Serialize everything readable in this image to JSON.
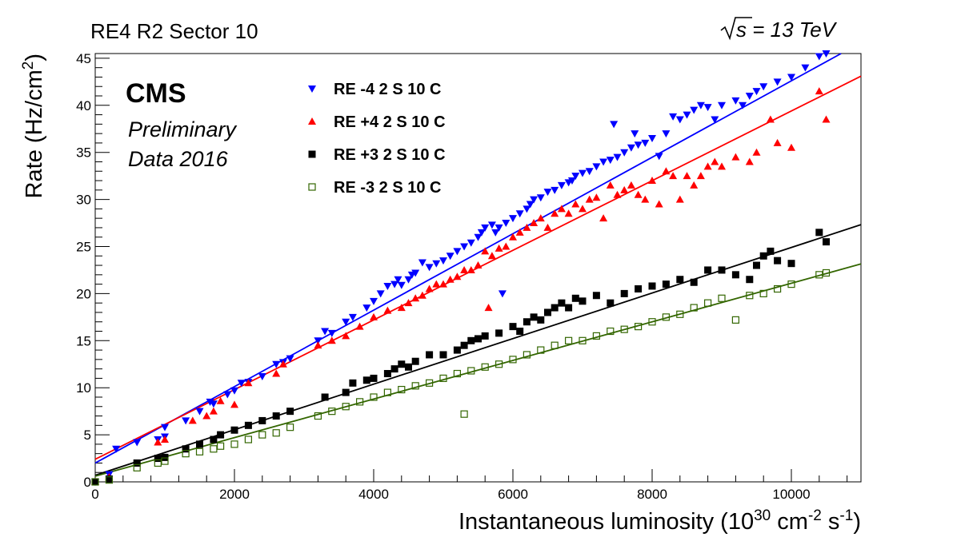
{
  "header": {
    "left_title": "RE4 R2 Sector 10",
    "energy_symbol": "s",
    "energy_value": " = 13 TeV"
  },
  "cms_label": {
    "main": "CMS",
    "line1": "Preliminary",
    "line2": "Data 2016"
  },
  "axes": {
    "x_title_base": "Instantaneous luminosity (10",
    "x_title_sup1": "30",
    "x_title_mid1": " cm",
    "x_title_sup2": "-2",
    "x_title_mid2": " s",
    "x_title_sup3": "-1",
    "x_title_end": ")",
    "y_title_base": "Rate (Hz/cm",
    "y_title_sup": "2",
    "y_title_end": ")"
  },
  "chart_data": {
    "type": "scatter",
    "xlim": [
      0,
      11000
    ],
    "ylim": [
      0,
      45.5
    ],
    "x_ticks": [
      0,
      2000,
      4000,
      6000,
      8000,
      10000
    ],
    "x_tick_labels": [
      "0",
      "2000",
      "4000",
      "6000",
      "8000",
      "10000"
    ],
    "y_ticks": [
      0,
      5,
      10,
      15,
      20,
      25,
      30,
      35,
      40,
      45
    ],
    "y_tick_labels": [
      "0",
      "5",
      "10",
      "15",
      "20",
      "25",
      "30",
      "35",
      "40",
      "45"
    ],
    "grid": false,
    "legend_position": "top-left",
    "series": [
      {
        "name": "RE -4 2 S 10 C",
        "marker": "triangle-down",
        "color": "#0000ff",
        "fit": {
          "slope": 0.00406,
          "intercept": 2.0
        },
        "points": [
          [
            0,
            0
          ],
          [
            200,
            0.8
          ],
          [
            300,
            3.5
          ],
          [
            600,
            4.2
          ],
          [
            900,
            4.5
          ],
          [
            1000,
            4.8
          ],
          [
            1000,
            5.8
          ],
          [
            1300,
            6.5
          ],
          [
            1500,
            7.5
          ],
          [
            1650,
            8.5
          ],
          [
            1700,
            8.3
          ],
          [
            1900,
            9.3
          ],
          [
            2000,
            9.7
          ],
          [
            2100,
            10.5
          ],
          [
            2200,
            10.6
          ],
          [
            2400,
            11.2
          ],
          [
            2600,
            12.5
          ],
          [
            2700,
            12.7
          ],
          [
            2800,
            13.1
          ],
          [
            3200,
            15.0
          ],
          [
            3300,
            16.0
          ],
          [
            3400,
            15.8
          ],
          [
            3600,
            17.0
          ],
          [
            3700,
            17.5
          ],
          [
            3900,
            18.5
          ],
          [
            4000,
            19.2
          ],
          [
            4100,
            20.0
          ],
          [
            4200,
            20.8
          ],
          [
            4300,
            21.0
          ],
          [
            4350,
            21.5
          ],
          [
            4400,
            20.9
          ],
          [
            4500,
            21.5
          ],
          [
            4550,
            22.0
          ],
          [
            4600,
            22.2
          ],
          [
            4700,
            23.3
          ],
          [
            4800,
            22.8
          ],
          [
            4900,
            23.2
          ],
          [
            5000,
            23.5
          ],
          [
            5100,
            24.0
          ],
          [
            5200,
            24.5
          ],
          [
            5300,
            25.0
          ],
          [
            5400,
            25.4
          ],
          [
            5500,
            26.0
          ],
          [
            5550,
            26.5
          ],
          [
            5600,
            27.0
          ],
          [
            5700,
            27.3
          ],
          [
            5750,
            26.5
          ],
          [
            5800,
            27.0
          ],
          [
            5850,
            20.0
          ],
          [
            5900,
            27.5
          ],
          [
            6000,
            28.0
          ],
          [
            6100,
            28.5
          ],
          [
            6200,
            29.0
          ],
          [
            6250,
            29.5
          ],
          [
            6300,
            30.0
          ],
          [
            6400,
            30.2
          ],
          [
            6500,
            30.8
          ],
          [
            6600,
            31.0
          ],
          [
            6700,
            31.5
          ],
          [
            6800,
            31.8
          ],
          [
            6850,
            32.0
          ],
          [
            6900,
            32.5
          ],
          [
            7000,
            32.8
          ],
          [
            7100,
            33.0
          ],
          [
            7200,
            33.5
          ],
          [
            7300,
            34.0
          ],
          [
            7400,
            34.2
          ],
          [
            7450,
            38.0
          ],
          [
            7500,
            34.5
          ],
          [
            7600,
            35.0
          ],
          [
            7700,
            35.5
          ],
          [
            7750,
            37.0
          ],
          [
            7800,
            35.8
          ],
          [
            7900,
            36.0
          ],
          [
            8000,
            36.5
          ],
          [
            8100,
            34.6
          ],
          [
            8200,
            37.0
          ],
          [
            8300,
            38.8
          ],
          [
            8400,
            38.5
          ],
          [
            8500,
            39.0
          ],
          [
            8600,
            39.5
          ],
          [
            8700,
            40.0
          ],
          [
            8800,
            39.8
          ],
          [
            8900,
            38.5
          ],
          [
            9000,
            40.0
          ],
          [
            9200,
            40.5
          ],
          [
            9300,
            40.0
          ],
          [
            9400,
            41.0
          ],
          [
            9500,
            41.5
          ],
          [
            9600,
            42.0
          ],
          [
            9800,
            42.5
          ],
          [
            10000,
            43.0
          ],
          [
            10200,
            44.0
          ],
          [
            10400,
            45.2
          ],
          [
            10500,
            45.5
          ]
        ]
      },
      {
        "name": "RE +4 2 S 10 C",
        "marker": "triangle-up",
        "color": "#ff0000",
        "fit": {
          "slope": 0.0037,
          "intercept": 2.4
        },
        "points": [
          [
            0,
            0
          ],
          [
            200,
            0.5
          ],
          [
            900,
            4.2
          ],
          [
            1000,
            4.5
          ],
          [
            1400,
            6.5
          ],
          [
            1600,
            7.0
          ],
          [
            1700,
            7.5
          ],
          [
            1800,
            8.6
          ],
          [
            2000,
            8.2
          ],
          [
            2200,
            10.5
          ],
          [
            2600,
            11.5
          ],
          [
            2700,
            12.5
          ],
          [
            3200,
            14.5
          ],
          [
            3400,
            15.0
          ],
          [
            3600,
            15.5
          ],
          [
            3800,
            16.5
          ],
          [
            4000,
            17.5
          ],
          [
            4200,
            18.2
          ],
          [
            4400,
            18.5
          ],
          [
            4500,
            19.0
          ],
          [
            4600,
            19.5
          ],
          [
            4700,
            19.8
          ],
          [
            4800,
            20.5
          ],
          [
            4900,
            21.0
          ],
          [
            5000,
            21.0
          ],
          [
            5100,
            21.5
          ],
          [
            5200,
            21.8
          ],
          [
            5300,
            22.5
          ],
          [
            5400,
            22.5
          ],
          [
            5500,
            23.0
          ],
          [
            5600,
            24.5
          ],
          [
            5650,
            18.5
          ],
          [
            5700,
            24.0
          ],
          [
            5800,
            24.8
          ],
          [
            5900,
            25.0
          ],
          [
            6000,
            26.0
          ],
          [
            6100,
            26.5
          ],
          [
            6200,
            27.0
          ],
          [
            6300,
            27.5
          ],
          [
            6400,
            28.0
          ],
          [
            6500,
            27.0
          ],
          [
            6600,
            28.5
          ],
          [
            6700,
            29.0
          ],
          [
            6800,
            28.5
          ],
          [
            6900,
            29.5
          ],
          [
            7000,
            29.0
          ],
          [
            7100,
            30.0
          ],
          [
            7200,
            30.2
          ],
          [
            7300,
            28.0
          ],
          [
            7400,
            31.5
          ],
          [
            7500,
            30.5
          ],
          [
            7600,
            31.0
          ],
          [
            7700,
            31.5
          ],
          [
            7800,
            30.5
          ],
          [
            7900,
            30.0
          ],
          [
            8000,
            32.0
          ],
          [
            8100,
            29.5
          ],
          [
            8200,
            33.0
          ],
          [
            8300,
            32.5
          ],
          [
            8400,
            30.0
          ],
          [
            8500,
            32.5
          ],
          [
            8600,
            31.5
          ],
          [
            8700,
            32.5
          ],
          [
            8800,
            33.5
          ],
          [
            8900,
            34.0
          ],
          [
            9000,
            33.5
          ],
          [
            9200,
            34.5
          ],
          [
            9400,
            34.0
          ],
          [
            9500,
            35.0
          ],
          [
            9700,
            38.5
          ],
          [
            9800,
            36.0
          ],
          [
            10000,
            35.5
          ],
          [
            10400,
            41.5
          ],
          [
            10500,
            38.5
          ]
        ]
      },
      {
        "name": "RE +3 2 S 10 C",
        "marker": "square",
        "color": "#000000",
        "fit": {
          "slope": 0.00242,
          "intercept": 0.7
        },
        "points": [
          [
            0,
            0
          ],
          [
            200,
            0.3
          ],
          [
            600,
            2.0
          ],
          [
            900,
            2.5
          ],
          [
            1000,
            2.6
          ],
          [
            1300,
            3.5
          ],
          [
            1500,
            4.0
          ],
          [
            1700,
            4.5
          ],
          [
            1800,
            5.0
          ],
          [
            2000,
            5.5
          ],
          [
            2200,
            6.0
          ],
          [
            2400,
            6.5
          ],
          [
            2600,
            7.0
          ],
          [
            2800,
            7.5
          ],
          [
            3300,
            9.0
          ],
          [
            3600,
            9.5
          ],
          [
            3700,
            10.5
          ],
          [
            3900,
            10.8
          ],
          [
            4000,
            11.0
          ],
          [
            4200,
            11.5
          ],
          [
            4300,
            12.0
          ],
          [
            4400,
            12.5
          ],
          [
            4500,
            12.2
          ],
          [
            4600,
            12.8
          ],
          [
            4800,
            13.5
          ],
          [
            5000,
            13.5
          ],
          [
            5200,
            14.0
          ],
          [
            5300,
            14.5
          ],
          [
            5400,
            15.0
          ],
          [
            5500,
            15.2
          ],
          [
            5600,
            15.5
          ],
          [
            5800,
            15.8
          ],
          [
            6000,
            16.5
          ],
          [
            6100,
            16.0
          ],
          [
            6200,
            17.0
          ],
          [
            6300,
            17.5
          ],
          [
            6400,
            17.2
          ],
          [
            6500,
            18.0
          ],
          [
            6600,
            18.5
          ],
          [
            6700,
            19.0
          ],
          [
            6800,
            18.5
          ],
          [
            6900,
            19.5
          ],
          [
            7000,
            19.2
          ],
          [
            7200,
            19.8
          ],
          [
            7400,
            19.0
          ],
          [
            7600,
            20.0
          ],
          [
            7800,
            20.5
          ],
          [
            8000,
            20.8
          ],
          [
            8200,
            21.0
          ],
          [
            8400,
            21.5
          ],
          [
            8600,
            21.2
          ],
          [
            8800,
            22.5
          ],
          [
            9000,
            22.5
          ],
          [
            9200,
            22.0
          ],
          [
            9400,
            21.5
          ],
          [
            9500,
            23.0
          ],
          [
            9600,
            24.0
          ],
          [
            9700,
            24.5
          ],
          [
            9800,
            23.5
          ],
          [
            10000,
            23.2
          ],
          [
            10400,
            26.5
          ],
          [
            10500,
            25.5
          ]
        ]
      },
      {
        "name": "RE -3 2 S 10 C",
        "marker": "open-square",
        "color": "#336600",
        "fit": {
          "slope": 0.00205,
          "intercept": 0.6
        },
        "points": [
          [
            0,
            0
          ],
          [
            200,
            0.2
          ],
          [
            600,
            1.5
          ],
          [
            900,
            2.0
          ],
          [
            1000,
            2.2
          ],
          [
            1300,
            3.0
          ],
          [
            1500,
            3.2
          ],
          [
            1700,
            3.5
          ],
          [
            1800,
            3.8
          ],
          [
            2000,
            4.0
          ],
          [
            2200,
            4.5
          ],
          [
            2400,
            5.0
          ],
          [
            2600,
            5.2
          ],
          [
            2800,
            5.8
          ],
          [
            3200,
            7.0
          ],
          [
            3400,
            7.5
          ],
          [
            3600,
            8.0
          ],
          [
            3800,
            8.5
          ],
          [
            4000,
            9.0
          ],
          [
            4200,
            9.5
          ],
          [
            4400,
            9.8
          ],
          [
            4600,
            10.2
          ],
          [
            4800,
            10.5
          ],
          [
            5000,
            11.0
          ],
          [
            5200,
            11.5
          ],
          [
            5300,
            7.2
          ],
          [
            5400,
            11.8
          ],
          [
            5600,
            12.2
          ],
          [
            5800,
            12.5
          ],
          [
            6000,
            13.0
          ],
          [
            6200,
            13.5
          ],
          [
            6400,
            14.0
          ],
          [
            6600,
            14.5
          ],
          [
            6800,
            15.0
          ],
          [
            7000,
            15.0
          ],
          [
            7200,
            15.5
          ],
          [
            7400,
            16.0
          ],
          [
            7600,
            16.2
          ],
          [
            7800,
            16.5
          ],
          [
            8000,
            17.0
          ],
          [
            8200,
            17.5
          ],
          [
            8400,
            17.8
          ],
          [
            8600,
            18.5
          ],
          [
            8800,
            19.0
          ],
          [
            9000,
            19.5
          ],
          [
            9200,
            17.2
          ],
          [
            9400,
            19.8
          ],
          [
            9600,
            20.0
          ],
          [
            9800,
            20.5
          ],
          [
            10000,
            21.0
          ],
          [
            10400,
            22.0
          ],
          [
            10500,
            22.2
          ]
        ]
      }
    ]
  }
}
